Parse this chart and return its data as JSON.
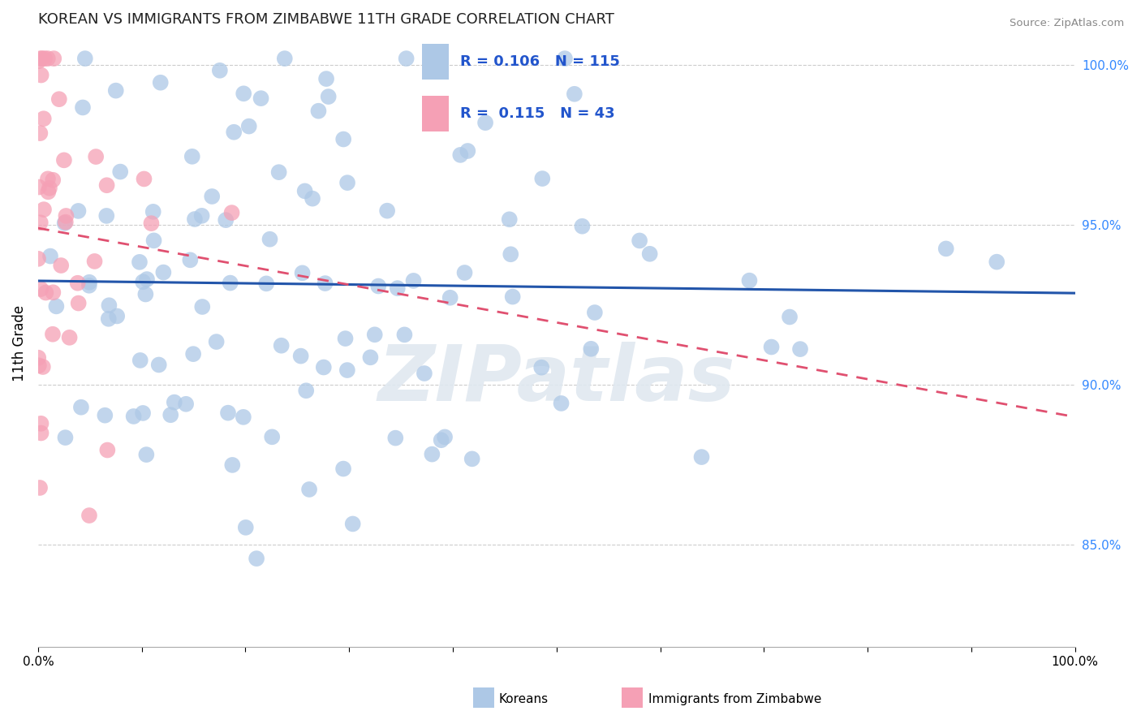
{
  "title": "KOREAN VS IMMIGRANTS FROM ZIMBABWE 11TH GRADE CORRELATION CHART",
  "source_text": "Source: ZipAtlas.com",
  "ylabel": "11th Grade",
  "xlim": [
    0.0,
    1.0
  ],
  "ylim": [
    0.818,
    1.008
  ],
  "yticks": [
    0.85,
    0.9,
    0.95,
    1.0
  ],
  "ytick_labels": [
    "85.0%",
    "90.0%",
    "95.0%",
    "100.0%"
  ],
  "xtick_labels": [
    "0.0%",
    "100.0%"
  ],
  "blue_color": "#adc8e6",
  "pink_color": "#f5a0b5",
  "blue_line_color": "#2255aa",
  "pink_line_color": "#e05070",
  "R_blue": 0.106,
  "N_blue": 115,
  "R_pink": 0.115,
  "N_pink": 43,
  "watermark": "ZIPatlas",
  "legend_labels": [
    "Koreans",
    "Immigrants from Zimbabwe"
  ]
}
